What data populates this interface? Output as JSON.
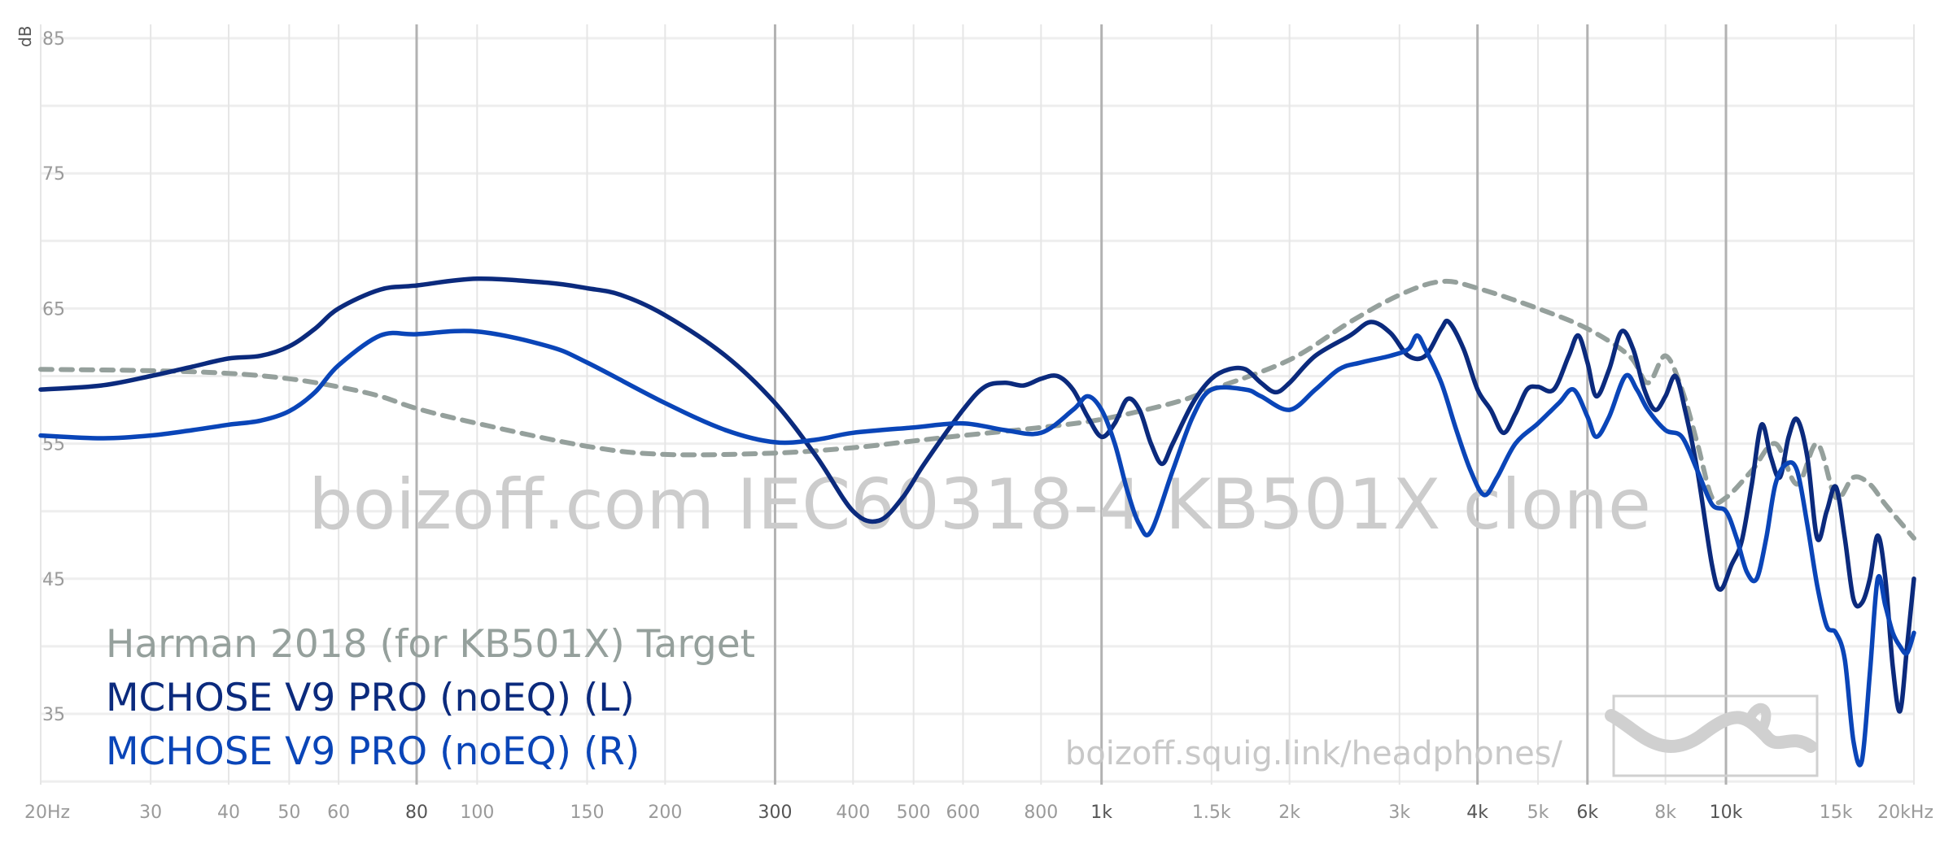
{
  "chart_data": {
    "type": "line",
    "ylabel": "dB",
    "xscale": "log",
    "xlim": [
      20,
      20000
    ],
    "ylim": [
      30,
      85
    ],
    "y_ticks": [
      {
        "value": 85,
        "label": "85"
      },
      {
        "value": 75,
        "label": "75"
      },
      {
        "value": 65,
        "label": "65"
      },
      {
        "value": 55,
        "label": "55"
      },
      {
        "value": 45,
        "label": "45"
      },
      {
        "value": 35,
        "label": "35"
      }
    ],
    "x_ticks": [
      {
        "value": 20,
        "label": "20Hz",
        "major": false
      },
      {
        "value": 30,
        "label": "30",
        "major": false
      },
      {
        "value": 40,
        "label": "40",
        "major": false
      },
      {
        "value": 50,
        "label": "50",
        "major": false
      },
      {
        "value": 60,
        "label": "60",
        "major": false
      },
      {
        "value": 80,
        "label": "80",
        "major": true
      },
      {
        "value": 100,
        "label": "100",
        "major": false
      },
      {
        "value": 150,
        "label": "150",
        "major": false
      },
      {
        "value": 200,
        "label": "200",
        "major": false
      },
      {
        "value": 300,
        "label": "300",
        "major": true
      },
      {
        "value": 400,
        "label": "400",
        "major": false
      },
      {
        "value": 500,
        "label": "500",
        "major": false
      },
      {
        "value": 600,
        "label": "600",
        "major": false
      },
      {
        "value": 800,
        "label": "800",
        "major": false
      },
      {
        "value": 1000,
        "label": "1k",
        "major": true
      },
      {
        "value": 1500,
        "label": "1.5k",
        "major": false
      },
      {
        "value": 2000,
        "label": "2k",
        "major": false
      },
      {
        "value": 3000,
        "label": "3k",
        "major": false
      },
      {
        "value": 4000,
        "label": "4k",
        "major": true
      },
      {
        "value": 5000,
        "label": "5k",
        "major": false
      },
      {
        "value": 6000,
        "label": "6k",
        "major": true
      },
      {
        "value": 8000,
        "label": "8k",
        "major": false
      },
      {
        "value": 10000,
        "label": "10k",
        "major": true
      },
      {
        "value": 15000,
        "label": "15k",
        "major": false
      },
      {
        "value": 20000,
        "label": "20kHz",
        "major": false
      }
    ],
    "grid": true,
    "watermark": "boizoff.com IEC60318-4 KB501X clone",
    "url": "boizoff.squig.link/headphones/",
    "legend_position": "bottom-left",
    "series": [
      {
        "name": "Harman 2018 (for KB501X) Target",
        "color": "#95a09c",
        "style": "dashed",
        "points": [
          [
            20,
            60.5
          ],
          [
            30,
            60.4
          ],
          [
            40,
            60.2
          ],
          [
            50,
            59.8
          ],
          [
            60,
            59.2
          ],
          [
            70,
            58.5
          ],
          [
            80,
            57.6
          ],
          [
            100,
            56.5
          ],
          [
            150,
            54.8
          ],
          [
            200,
            54.2
          ],
          [
            300,
            54.3
          ],
          [
            400,
            54.7
          ],
          [
            500,
            55.2
          ],
          [
            600,
            55.6
          ],
          [
            800,
            56.2
          ],
          [
            1000,
            56.8
          ],
          [
            1300,
            58
          ],
          [
            1500,
            59
          ],
          [
            2000,
            61.2
          ],
          [
            2500,
            64
          ],
          [
            3000,
            66
          ],
          [
            3500,
            67
          ],
          [
            4000,
            66.5
          ],
          [
            5000,
            65
          ],
          [
            6000,
            63.5
          ],
          [
            7000,
            61.5
          ],
          [
            7500,
            59.5
          ],
          [
            8000,
            61.5
          ],
          [
            8500,
            59
          ],
          [
            9000,
            55
          ],
          [
            9500,
            51
          ],
          [
            10000,
            51
          ],
          [
            11000,
            53
          ],
          [
            12000,
            55
          ],
          [
            13000,
            52
          ],
          [
            14000,
            55
          ],
          [
            15000,
            51
          ],
          [
            16000,
            52.5
          ],
          [
            17000,
            52
          ],
          [
            18000,
            50.5
          ],
          [
            20000,
            48
          ]
        ]
      },
      {
        "name": "MCHOSE V9 PRO (noEQ) (L)",
        "color": "#0b2a7d",
        "style": "solid",
        "points": [
          [
            20,
            59
          ],
          [
            25,
            59.3
          ],
          [
            30,
            60
          ],
          [
            35,
            60.7
          ],
          [
            40,
            61.3
          ],
          [
            45,
            61.5
          ],
          [
            50,
            62.2
          ],
          [
            55,
            63.5
          ],
          [
            60,
            65
          ],
          [
            70,
            66.4
          ],
          [
            80,
            66.7
          ],
          [
            100,
            67.2
          ],
          [
            130,
            66.9
          ],
          [
            150,
            66.5
          ],
          [
            170,
            66
          ],
          [
            200,
            64.5
          ],
          [
            250,
            61.5
          ],
          [
            300,
            58
          ],
          [
            350,
            54
          ],
          [
            400,
            50
          ],
          [
            440,
            49.3
          ],
          [
            480,
            51
          ],
          [
            520,
            53.5
          ],
          [
            600,
            57.5
          ],
          [
            650,
            59.2
          ],
          [
            700,
            59.5
          ],
          [
            750,
            59.3
          ],
          [
            800,
            59.8
          ],
          [
            850,
            60
          ],
          [
            900,
            59
          ],
          [
            950,
            57
          ],
          [
            1000,
            55.5
          ],
          [
            1050,
            56.5
          ],
          [
            1100,
            58.3
          ],
          [
            1150,
            57.5
          ],
          [
            1200,
            55
          ],
          [
            1250,
            53.5
          ],
          [
            1300,
            55
          ],
          [
            1400,
            58
          ],
          [
            1500,
            59.8
          ],
          [
            1600,
            60.5
          ],
          [
            1700,
            60.5
          ],
          [
            1800,
            59.5
          ],
          [
            1900,
            58.8
          ],
          [
            2000,
            59.5
          ],
          [
            2200,
            61.5
          ],
          [
            2500,
            63
          ],
          [
            2700,
            64
          ],
          [
            2900,
            63.2
          ],
          [
            3100,
            61.5
          ],
          [
            3300,
            61.5
          ],
          [
            3500,
            63.5
          ],
          [
            3600,
            64
          ],
          [
            3800,
            62
          ],
          [
            4000,
            59
          ],
          [
            4200,
            57.5
          ],
          [
            4400,
            55.8
          ],
          [
            4600,
            57.2
          ],
          [
            4800,
            59
          ],
          [
            5000,
            59.2
          ],
          [
            5300,
            59
          ],
          [
            5600,
            61.5
          ],
          [
            5800,
            63
          ],
          [
            6000,
            61
          ],
          [
            6200,
            58.5
          ],
          [
            6500,
            60.5
          ],
          [
            6800,
            63.3
          ],
          [
            7100,
            62
          ],
          [
            7400,
            59
          ],
          [
            7700,
            57.5
          ],
          [
            8000,
            58.5
          ],
          [
            8300,
            60
          ],
          [
            8600,
            57.5
          ],
          [
            9000,
            53
          ],
          [
            9500,
            46
          ],
          [
            9800,
            44.2
          ],
          [
            10200,
            46
          ],
          [
            10600,
            47.8
          ],
          [
            11000,
            52
          ],
          [
            11400,
            56.4
          ],
          [
            11800,
            54
          ],
          [
            12200,
            52.5
          ],
          [
            12600,
            55.5
          ],
          [
            13000,
            56.8
          ],
          [
            13500,
            54
          ],
          [
            14000,
            48
          ],
          [
            14500,
            50
          ],
          [
            15000,
            51.8
          ],
          [
            15500,
            48
          ],
          [
            16000,
            43.5
          ],
          [
            16500,
            43.2
          ],
          [
            17000,
            45
          ],
          [
            17500,
            48.2
          ],
          [
            18000,
            45
          ],
          [
            18500,
            38.5
          ],
          [
            19000,
            35.2
          ],
          [
            19500,
            40
          ],
          [
            20000,
            45
          ]
        ]
      },
      {
        "name": "MCHOSE V9 PRO (noEQ) (R)",
        "color": "#0a45b8",
        "style": "solid",
        "points": [
          [
            20,
            55.6
          ],
          [
            25,
            55.4
          ],
          [
            30,
            55.6
          ],
          [
            35,
            56
          ],
          [
            40,
            56.4
          ],
          [
            45,
            56.7
          ],
          [
            50,
            57.4
          ],
          [
            55,
            58.8
          ],
          [
            60,
            60.8
          ],
          [
            70,
            63
          ],
          [
            80,
            63.1
          ],
          [
            100,
            63.3
          ],
          [
            130,
            62.2
          ],
          [
            150,
            61
          ],
          [
            200,
            58
          ],
          [
            250,
            56
          ],
          [
            300,
            55.1
          ],
          [
            350,
            55.3
          ],
          [
            400,
            55.8
          ],
          [
            500,
            56.2
          ],
          [
            600,
            56.5
          ],
          [
            700,
            56
          ],
          [
            800,
            55.8
          ],
          [
            900,
            57.5
          ],
          [
            950,
            58.5
          ],
          [
            1000,
            57.5
          ],
          [
            1050,
            55
          ],
          [
            1100,
            51.5
          ],
          [
            1150,
            49
          ],
          [
            1200,
            48.5
          ],
          [
            1300,
            53
          ],
          [
            1400,
            57
          ],
          [
            1500,
            59
          ],
          [
            1700,
            59
          ],
          [
            1800,
            58.5
          ],
          [
            2000,
            57.5
          ],
          [
            2200,
            59
          ],
          [
            2400,
            60.5
          ],
          [
            2600,
            61
          ],
          [
            2900,
            61.5
          ],
          [
            3100,
            62
          ],
          [
            3200,
            63
          ],
          [
            3300,
            62
          ],
          [
            3500,
            59.5
          ],
          [
            3700,
            56
          ],
          [
            3900,
            53
          ],
          [
            4100,
            51.2
          ],
          [
            4300,
            52.5
          ],
          [
            4600,
            55
          ],
          [
            5000,
            56.5
          ],
          [
            5400,
            58
          ],
          [
            5700,
            59
          ],
          [
            6000,
            57
          ],
          [
            6200,
            55.5
          ],
          [
            6500,
            57
          ],
          [
            6900,
            60
          ],
          [
            7200,
            59
          ],
          [
            7500,
            57.5
          ],
          [
            8000,
            56
          ],
          [
            8500,
            55.5
          ],
          [
            9000,
            53
          ],
          [
            9500,
            50.5
          ],
          [
            10000,
            50
          ],
          [
            10400,
            48
          ],
          [
            10800,
            45.5
          ],
          [
            11200,
            45
          ],
          [
            11600,
            48
          ],
          [
            12000,
            52
          ],
          [
            12500,
            53.5
          ],
          [
            13000,
            53
          ],
          [
            13500,
            49
          ],
          [
            14000,
            44.5
          ],
          [
            14500,
            41.5
          ],
          [
            15000,
            41
          ],
          [
            15500,
            39
          ],
          [
            16000,
            33
          ],
          [
            16500,
            31.5
          ],
          [
            17000,
            38
          ],
          [
            17500,
            45
          ],
          [
            18000,
            43
          ],
          [
            18500,
            41
          ],
          [
            19000,
            40
          ],
          [
            19500,
            39.5
          ],
          [
            20000,
            41
          ]
        ]
      }
    ]
  },
  "style": {
    "grid_major_color": "#b2b2b2",
    "grid_minor_color": "#e6e6e6",
    "y_grid_color": "#eeeeee"
  }
}
